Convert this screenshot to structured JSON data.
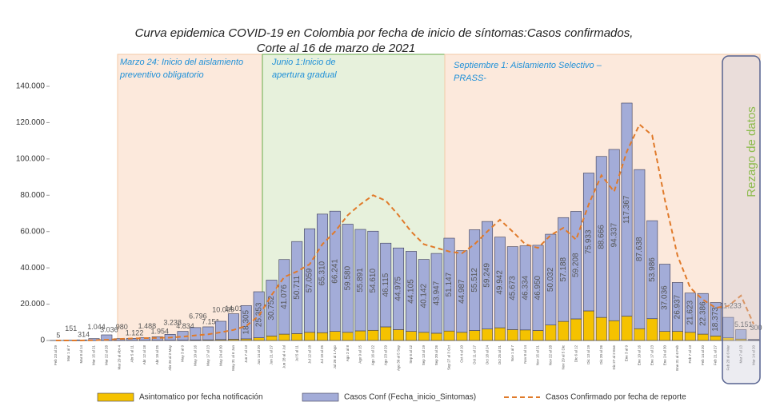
{
  "chart_data": {
    "type": "bar",
    "title": "Curva epidemica COVID-19 en Colombia  por fecha de inicio de síntomas:Casos confirmados,",
    "subtitle": "Corte al 16 de marzo de 2021",
    "annotations": [
      "Marzo 24: Inicio del aislamiento",
      "preventivo obligatorio",
      "Junio 1:Inicio de",
      "apertura gradual",
      "Septiembre 1: Aislamiento Selectivo –",
      "PRASS-",
      "Rezago de datos"
    ],
    "categories": [
      "Feb 23 al 29",
      "Mar 1 al 7",
      "Mar 8 al 14",
      "Mar 15 al 21",
      "Mar 22 al 28",
      "Mar 29 al Abr 4",
      "Abr 5 al 11",
      "Abr 12 al 18",
      "Abr 19 al 25",
      "Abr 26 al 2 May",
      "May 3 al 9",
      "May 10 al 16",
      "May 17 al 23",
      "May 24 al 30",
      "May 31 al 6 Jun",
      "Jun 7 al 13",
      "Jun 14 al 20",
      "Jun 21 al 27",
      "Jun 28 al 4 Jul",
      "Jul 5 al 11",
      "Jul 12 al 18",
      "Jul 19 al 25",
      "Jul 26 al 1 Ago",
      "Ago 2 al 8",
      "Ago 9 al 15",
      "Ago 16 al 22",
      "Ago 23 al 29",
      "Ago 30 al 5 Sep",
      "Sep 6 al 12",
      "Sep 13 al 19",
      "Sep 20 al 26",
      "Sep 27 al 3 Oct",
      "Oct 4 al 10",
      "Oct 11 al 17",
      "Oct 18 al 24",
      "Oct 25 al 31",
      "Nov 1 al 7",
      "Nov 8 al 14",
      "Nov 15 al 21",
      "Nov 22 al 28",
      "Nov 29 al 5 Dic",
      "Dic 6 al 12",
      "Dic 13 al 19",
      "Dic 20 al 26",
      "Dic 27 al 2 Ene",
      "Ene 3 al 9",
      "Ene 10 al 16",
      "Ene 17 al 23",
      "Ene 24 al 30",
      "Ene 31 al 6 Feb",
      "Feb 7 al 13",
      "Feb 14 al 20",
      "Feb 21 al 27",
      "Feb 28 al 6 Mar",
      "Mar 7 al 13",
      "Mar 14 al 20"
    ],
    "series": [
      {
        "name": "Asintomatico  por fecha notificación",
        "color": "#f5c200",
        "stack": true,
        "values": [
          0,
          0,
          0,
          10,
          50,
          40,
          60,
          80,
          100,
          150,
          200,
          300,
          350,
          500,
          700,
          900,
          1500,
          2500,
          3500,
          3800,
          4500,
          4300,
          5000,
          4500,
          5300,
          5600,
          7500,
          6000,
          5000,
          4500,
          4000,
          5200,
          4500,
          5500,
          6300,
          7000,
          6000,
          5800,
          5500,
          8500,
          10500,
          11900,
          16300,
          12700,
          10900,
          13400,
          6500,
          12000,
          5000,
          5000,
          4500,
          3500,
          2500,
          1500,
          800,
          300
        ]
      },
      {
        "name": "Casos Conf (Fecha_inicio_Sintomas)",
        "color": "#a3acd8",
        "stack": true,
        "values": [
          5,
          151,
          314,
          1044,
          3036,
          980,
          1122,
          1488,
          1954,
          3238,
          4834,
          6796,
          7151,
          10069,
          14019,
          18305,
          25353,
          30752,
          41076,
          50711,
          57059,
          65310,
          66241,
          59580,
          55891,
          54610,
          46115,
          44975,
          44105,
          40142,
          43947,
          51147,
          44987,
          55512,
          59249,
          49942,
          45673,
          46334,
          46950,
          50032,
          57188,
          59208,
          75933,
          88666,
          94337,
          117367,
          87638,
          53986,
          37036,
          26937,
          21623,
          22386,
          18373,
          11233,
          5151,
          300
        ],
        "value_labels": [
          "5",
          "151",
          "314",
          "1.044",
          "3.036",
          "980",
          "1.122",
          "1.488",
          "1.954",
          "3.238",
          "4.834",
          "6.796",
          "7.151",
          "10.069",
          "14.019",
          "18.305",
          "25.353",
          "30.752",
          "41.076",
          "50.711",
          "57.059",
          "65.310",
          "66.241",
          "59.580",
          "55.891",
          "54.610",
          "46.115",
          "44.975",
          "44.105",
          "40.142",
          "43.947",
          "51.147",
          "44.987",
          "55.512",
          "59.249",
          "49.942",
          "45.673",
          "46.334",
          "46.950",
          "50.032",
          "57.188",
          "59.208",
          "75.933",
          "88.666",
          "94.337",
          "117.367",
          "87.638",
          "53.986",
          "37.036",
          "26.937",
          "21.623",
          "22.386",
          "18.373",
          "11.233",
          "5.151",
          "300"
        ]
      },
      {
        "name": "Casos Confirmado por fecha de reporte",
        "color": "#e07a2a",
        "line": true,
        "dashed": true,
        "values": [
          0,
          0,
          10,
          100,
          400,
          800,
          1100,
          1300,
          1400,
          1600,
          2100,
          2800,
          3400,
          4500,
          5800,
          8000,
          13600,
          25000,
          35000,
          38000,
          42000,
          53000,
          60000,
          69000,
          75000,
          80000,
          77000,
          69000,
          60000,
          53000,
          51000,
          49000,
          48000,
          53000,
          60000,
          66500,
          60000,
          53000,
          51000,
          58000,
          62000,
          55500,
          75000,
          91000,
          82000,
          104000,
          119000,
          113000,
          77500,
          46700,
          29000,
          22500,
          18000,
          19000,
          24700,
          9000
        ]
      }
    ],
    "ylim": [
      0,
      140000
    ],
    "yticks": [
      {
        "value": 0,
        "label": "0"
      },
      {
        "value": 20000,
        "label": "20.000"
      },
      {
        "value": 40000,
        "label": "40.000"
      },
      {
        "value": 60000,
        "label": "60.000"
      },
      {
        "value": 80000,
        "label": "80.000"
      },
      {
        "value": 100000,
        "label": "100.000"
      },
      {
        "value": 120000,
        "label": "120.000"
      },
      {
        "value": 140000,
        "label": "140.000"
      }
    ],
    "grid": false
  }
}
